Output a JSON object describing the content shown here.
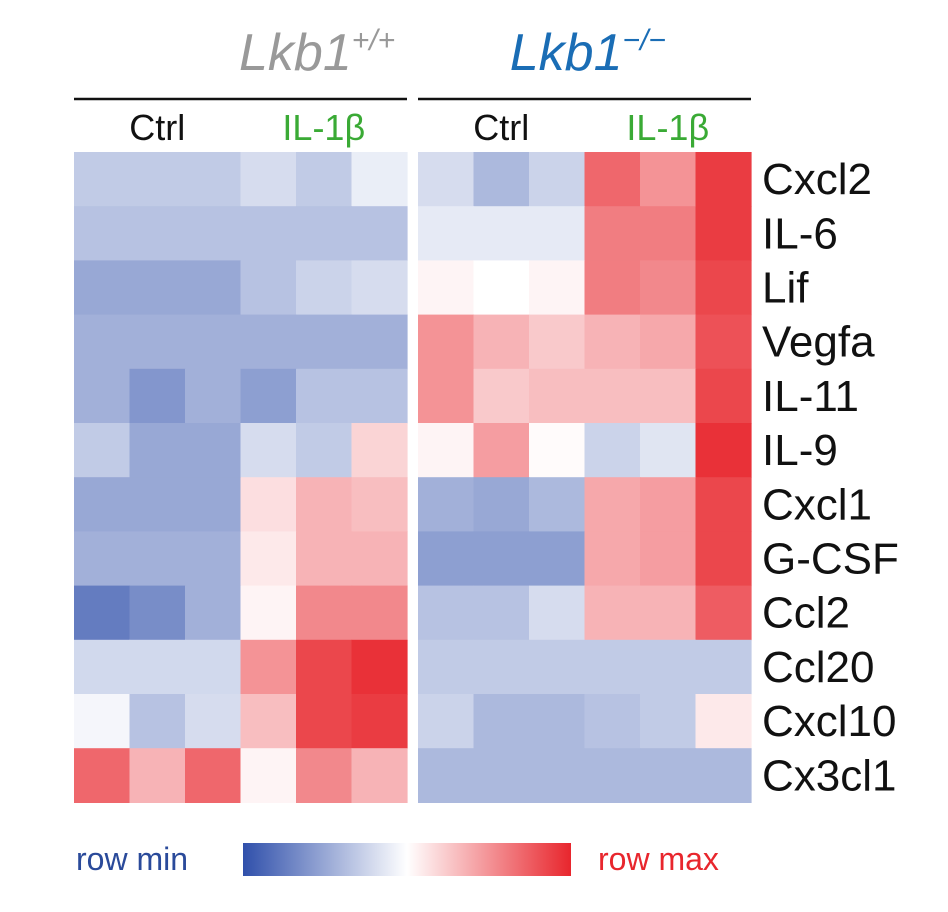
{
  "chart_data": {
    "type": "heatmap",
    "groups": [
      {
        "name_base": "Lkb1",
        "name_sup": "+/+",
        "title_color": "#999999",
        "conditions": [
          {
            "label": "Ctrl",
            "color": "#111111",
            "n": 3
          },
          {
            "label": "IL-1β",
            "color": "#3aaa35",
            "n": 3
          }
        ]
      },
      {
        "name_base": "Lkb1",
        "name_sup": "−/−",
        "title_color": "#1a6db5",
        "conditions": [
          {
            "label": "Ctrl",
            "color": "#111111",
            "n": 3
          },
          {
            "label": "IL-1β",
            "color": "#3aaa35",
            "n": 3
          }
        ]
      }
    ],
    "rows": [
      "Cxcl2",
      "IL-6",
      "Lif",
      "Vegfa",
      "IL-11",
      "IL-9",
      "Cxcl1",
      "G-CSF",
      "Ccl2",
      "Ccl20",
      "Cxcl10",
      "Cx3cl1"
    ],
    "values": [
      [
        -0.3,
        -0.3,
        -0.3,
        -0.2,
        -0.3,
        -0.1,
        -0.2,
        -0.4,
        -0.25,
        0.7,
        0.5,
        0.9
      ],
      [
        -0.35,
        -0.35,
        -0.35,
        -0.35,
        -0.35,
        -0.35,
        -0.12,
        -0.12,
        -0.12,
        0.6,
        0.6,
        0.9
      ],
      [
        -0.5,
        -0.5,
        -0.5,
        -0.35,
        -0.25,
        -0.2,
        0.05,
        0.0,
        0.05,
        0.6,
        0.55,
        0.85
      ],
      [
        -0.45,
        -0.45,
        -0.45,
        -0.45,
        -0.45,
        -0.45,
        0.5,
        0.35,
        0.25,
        0.35,
        0.4,
        0.8
      ],
      [
        -0.45,
        -0.6,
        -0.45,
        -0.55,
        -0.35,
        -0.35,
        0.5,
        0.25,
        0.3,
        0.3,
        0.3,
        0.85
      ],
      [
        -0.3,
        -0.5,
        -0.5,
        -0.2,
        -0.3,
        0.2,
        0.05,
        0.45,
        0.02,
        -0.25,
        -0.15,
        0.95
      ],
      [
        -0.5,
        -0.5,
        -0.5,
        0.15,
        0.35,
        0.3,
        -0.45,
        -0.5,
        -0.4,
        0.4,
        0.45,
        0.85
      ],
      [
        -0.45,
        -0.45,
        -0.45,
        0.1,
        0.35,
        0.35,
        -0.55,
        -0.55,
        -0.55,
        0.4,
        0.45,
        0.85
      ],
      [
        -0.75,
        -0.65,
        -0.45,
        0.05,
        0.55,
        0.55,
        -0.35,
        -0.35,
        -0.2,
        0.35,
        0.35,
        0.75
      ],
      [
        -0.22,
        -0.22,
        -0.22,
        0.5,
        0.85,
        0.95,
        -0.3,
        -0.3,
        -0.3,
        -0.3,
        -0.3,
        -0.3
      ],
      [
        -0.05,
        -0.35,
        -0.2,
        0.3,
        0.85,
        0.9,
        -0.25,
        -0.4,
        -0.4,
        -0.35,
        -0.3,
        0.1
      ],
      [
        0.7,
        0.35,
        0.7,
        0.05,
        0.55,
        0.35,
        -0.4,
        -0.4,
        -0.4,
        -0.4,
        -0.4,
        -0.4
      ]
    ],
    "value_range": [
      -1,
      1
    ],
    "colorscale": {
      "min_color": "#3050ab",
      "mid_color": "#ffffff",
      "max_color": "#e8262d"
    },
    "legend": {
      "min_label": "row min",
      "max_label": "row max",
      "min_label_color": "#2a4a9a",
      "max_label_color": "#e8262d",
      "placement": "bottom"
    }
  }
}
